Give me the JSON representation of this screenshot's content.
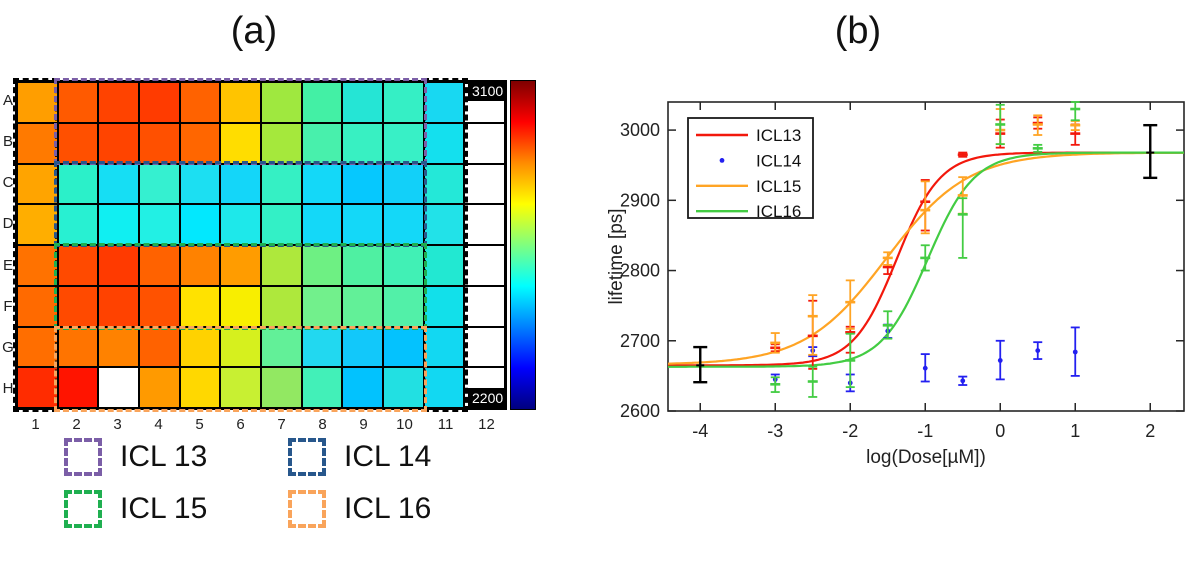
{
  "chart_data": [
    {
      "panel": "a",
      "type": "heatmap",
      "title": "(a)",
      "rows": [
        "A",
        "B",
        "C",
        "D",
        "E",
        "F",
        "G",
        "H"
      ],
      "cols": [
        "1",
        "2",
        "3",
        "4",
        "5",
        "6",
        "7",
        "8",
        "9",
        "10",
        "11",
        "12"
      ],
      "cell_colors": [
        [
          "#FF9E00",
          "#FF5A00",
          "#FF4300",
          "#FF3B00",
          "#FF6200",
          "#FFC400",
          "#9FE83F",
          "#43F0A5",
          "#25E5D5",
          "#35EFC5",
          "#18D8F2",
          "#FFFFFF"
        ],
        [
          "#FF7A00",
          "#FF5000",
          "#FF4400",
          "#FF5000",
          "#FF6600",
          "#FFDD00",
          "#A5E83C",
          "#48F0AC",
          "#38F0C2",
          "#38F0C6",
          "#14E0EE",
          "#FFFFFF"
        ],
        [
          "#FFA400",
          "#2BF0C9",
          "#16DEF4",
          "#35F0D0",
          "#1CDFF2",
          "#14D6F9",
          "#35F0C4",
          "#14D8F8",
          "#06C8FE",
          "#12D0F9",
          "#24E8D8",
          "#FFFFFF"
        ],
        [
          "#FFAE00",
          "#28F0D2",
          "#10EFF2",
          "#22F0E4",
          "#02E8FE",
          "#1EE8EA",
          "#33F0C6",
          "#14D8F8",
          "#14D8F8",
          "#14D8F8",
          "#22E2E8",
          "#FFFFFF"
        ],
        [
          "#FF7200",
          "#FF4A00",
          "#FF3A00",
          "#FF6200",
          "#FF8200",
          "#FF9C00",
          "#AEE83C",
          "#6EF083",
          "#4FF0A2",
          "#41F0B5",
          "#22E8D2",
          "#FFFFFF"
        ],
        [
          "#FF6A00",
          "#FF4A00",
          "#FF4200",
          "#FF5200",
          "#FFE200",
          "#F8EE00",
          "#AEE83C",
          "#72F08C",
          "#62F098",
          "#52F0A8",
          "#12E0EA",
          "#FFFFFF"
        ],
        [
          "#FF6E00",
          "#FF7400",
          "#FF8200",
          "#FF6200",
          "#FFD200",
          "#D6F01E",
          "#62F098",
          "#22D8F0",
          "#12C8FA",
          "#04C2FE",
          "#12D8F2",
          "#FFFFFF"
        ],
        [
          "#FF2C00",
          "#FF1400",
          "#FFFFFF",
          "#FF9A00",
          "#FFD800",
          "#C8F032",
          "#92E862",
          "#42F0B8",
          "#02C2FE",
          "#22E0E2",
          "#12D8F2",
          "#FFFFFF"
        ]
      ],
      "colorbar": {
        "max_label": "3100",
        "min_label": "2200",
        "gradient": [
          "#7F0000",
          "#FF0000",
          "#FF8C00",
          "#FFFF00",
          "#7FFF7F",
          "#00FFFF",
          "#0080FF",
          "#0000FF",
          "#00007F"
        ]
      },
      "overlays": [
        {
          "label": "control column 1",
          "color": "#000000",
          "row_start": 0,
          "row_end": 7,
          "col_start": 0,
          "col_end": 0
        },
        {
          "label": "control column 11",
          "color": "#000000",
          "row_start": 0,
          "row_end": 7,
          "col_start": 10,
          "col_end": 10
        },
        {
          "label": "ICL 13",
          "color": "#7B5EA7",
          "row_start": 0,
          "row_end": 1,
          "col_start": 1,
          "col_end": 9
        },
        {
          "label": "ICL 14",
          "color": "#28578C",
          "row_start": 2,
          "row_end": 3,
          "col_start": 1,
          "col_end": 9
        },
        {
          "label": "ICL 15",
          "color": "#1FAF50",
          "row_start": 4,
          "row_end": 5,
          "col_start": 1,
          "col_end": 9
        },
        {
          "label": "ICL 16",
          "color": "#F9A45B",
          "row_start": 6,
          "row_end": 7,
          "col_start": 1,
          "col_end": 9
        }
      ],
      "legend": [
        {
          "label": "ICL 13",
          "color": "#7B5EA7"
        },
        {
          "label": "ICL 14",
          "color": "#28578C"
        },
        {
          "label": "ICL 15",
          "color": "#1FAF50"
        },
        {
          "label": "ICL 16",
          "color": "#F9A45B"
        }
      ]
    },
    {
      "panel": "b",
      "type": "line",
      "title": "(b)",
      "xlabel": "log(Dose[µM])",
      "ylabel": "lifetime [ps]",
      "xlim": [
        -4.43,
        2.45
      ],
      "ylim": [
        2600,
        3040
      ],
      "xticks": [
        -4,
        -3,
        -2,
        -1,
        0,
        1,
        2
      ],
      "yticks": [
        2600,
        2700,
        2800,
        2900,
        3000
      ],
      "grid": false,
      "legend_position": "top-left",
      "x": [
        -3,
        -2.5,
        -2,
        -1.5,
        -1,
        -0.5,
        0,
        0.5,
        1
      ],
      "series": [
        {
          "name": "ICL13",
          "color": "#F2180C",
          "marker": "dash",
          "y": [
            2690,
            2707,
            2712,
            2805,
            2898,
            2965,
            2995,
            3010,
            2995
          ],
          "err_lo": [
            2685,
            2660,
            2683,
            2795,
            2857,
            2962,
            2975,
            3002,
            2979
          ],
          "err_hi": [
            2695,
            2757,
            2720,
            2818,
            2929,
            2968,
            3015,
            3018,
            3008
          ],
          "fit": {
            "base": 2665,
            "top": 2968,
            "ec50": -1.38,
            "hill": 1.5
          }
        },
        {
          "name": "ICL14",
          "color": "#2320F0",
          "marker": "dot",
          "y": [
            2645,
            2686,
            2640,
            2714,
            2661,
            2643,
            2672,
            2686,
            2684
          ],
          "err_lo": [
            2638,
            2678,
            2628,
            2704,
            2642,
            2637,
            2645,
            2674,
            2650
          ],
          "err_hi": [
            2652,
            2691,
            2652,
            2723,
            2681,
            2649,
            2700,
            2698,
            2719
          ],
          "fit": null
        },
        {
          "name": "ICL15",
          "color": "#FFA424",
          "marker": "dash",
          "y": [
            2697,
            2735,
            2755,
            2818,
            2886,
            2907,
            3000,
            3008,
            3007
          ],
          "err_lo": [
            2683,
            2680,
            2717,
            2808,
            2853,
            2881,
            2980,
            2993,
            3000
          ],
          "err_hi": [
            2711,
            2765,
            2786,
            2826,
            2927,
            2933,
            3030,
            3021,
            3013
          ],
          "fit": {
            "base": 2666,
            "top": 2968,
            "ec50": -1.52,
            "hill": 0.8
          }
        },
        {
          "name": "ICL16",
          "color": "#43CC43",
          "marker": "dash",
          "y": [
            2638,
            2642,
            2672,
            2722,
            2818,
            2880,
            3008,
            2974,
            3030
          ],
          "err_lo": [
            2627,
            2620,
            2634,
            2703,
            2800,
            2818,
            2980,
            2969,
            3014
          ],
          "err_hi": [
            2648,
            2663,
            2710,
            2742,
            2836,
            2903,
            3036,
            2979,
            3046
          ],
          "fit": {
            "base": 2663,
            "top": 2968,
            "ec50": -0.97,
            "hill": 1.4
          }
        }
      ],
      "reference_bars": [
        {
          "x": -4,
          "y": 2665,
          "lo": 2641,
          "hi": 2691
        },
        {
          "x": 2,
          "y": 2968,
          "lo": 2932,
          "hi": 3007
        }
      ],
      "reference_color": "#000000",
      "axis_color": "#262626"
    }
  ]
}
